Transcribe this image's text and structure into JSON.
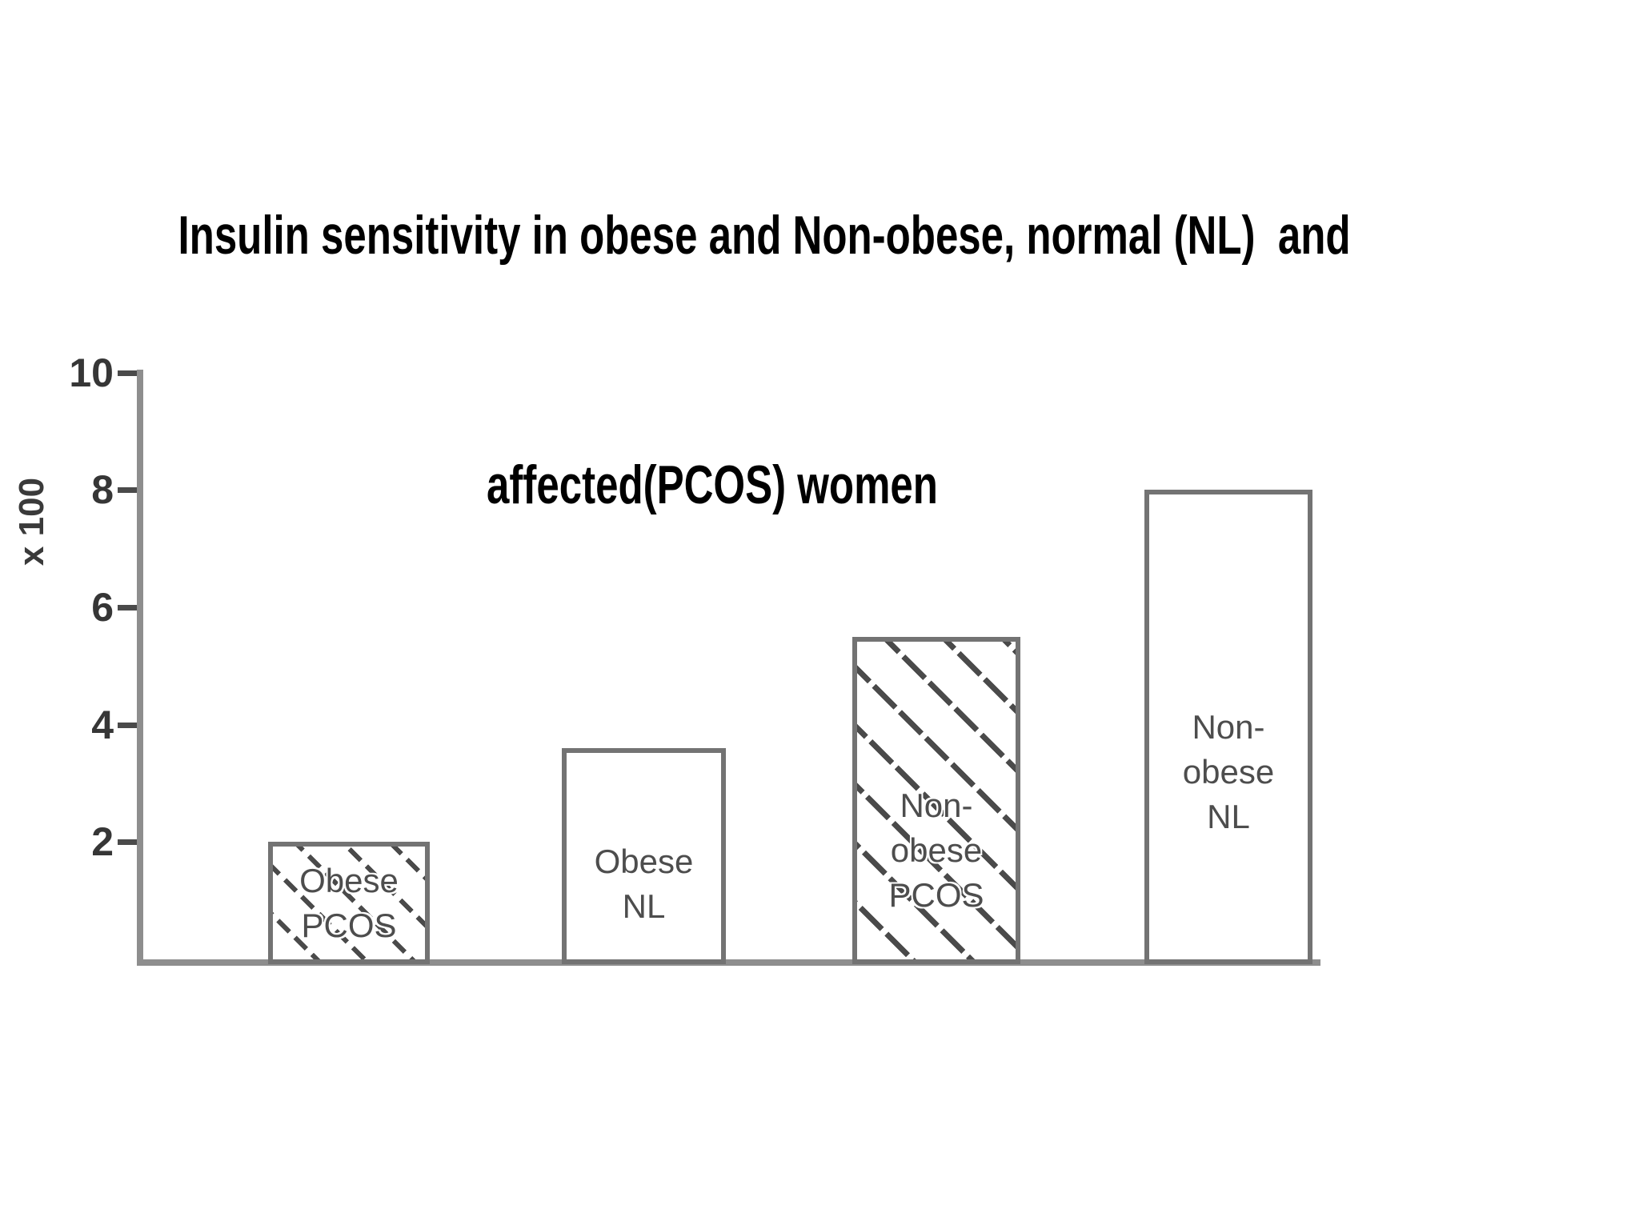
{
  "slide": {
    "title_line1": "Insulin sensitivity in obese and Non-obese, normal (NL)  and",
    "title_line2": "affected(PCOS) women"
  },
  "chart_data": {
    "type": "bar",
    "title": "Insulin sensitivity in obese and Non-obese, normal (NL) and affected(PCOS) women",
    "xlabel": "",
    "ylabel": "x 100",
    "ylim": [
      0,
      10
    ],
    "yticks": [
      2,
      4,
      6,
      8,
      10
    ],
    "grid": false,
    "legend_position": "none",
    "categories": [
      "Obese PCOS",
      "Obese NL",
      "Non-obese PCOS",
      "Non-obese NL"
    ],
    "values": [
      2.0,
      3.6,
      5.5,
      8.0
    ],
    "bars": [
      {
        "category": "Obese PCOS",
        "label_lines": [
          "Obese",
          "PCOS"
        ],
        "value": 2.0,
        "hatched": true
      },
      {
        "category": "Obese NL",
        "label_lines": [
          "Obese",
          "NL"
        ],
        "value": 3.6,
        "hatched": false
      },
      {
        "category": "Non-obese PCOS",
        "label_lines": [
          "Non-",
          "obese",
          "PCOS"
        ],
        "value": 5.5,
        "hatched": true
      },
      {
        "category": "Non-obese NL",
        "label_lines": [
          "Non-",
          "obese",
          "NL"
        ],
        "value": 8.0,
        "hatched": false
      }
    ],
    "colors": {
      "background": "#ffffff",
      "axis": "#8e8e8e",
      "tick_mark": "#4a4a4a",
      "tick_label": "#363636",
      "bar_border": "#737373",
      "bar_fill": "#ffffff",
      "hatch_line": "#4a4a4a",
      "bar_label": "#4d4d4d",
      "title": "#000000"
    }
  }
}
